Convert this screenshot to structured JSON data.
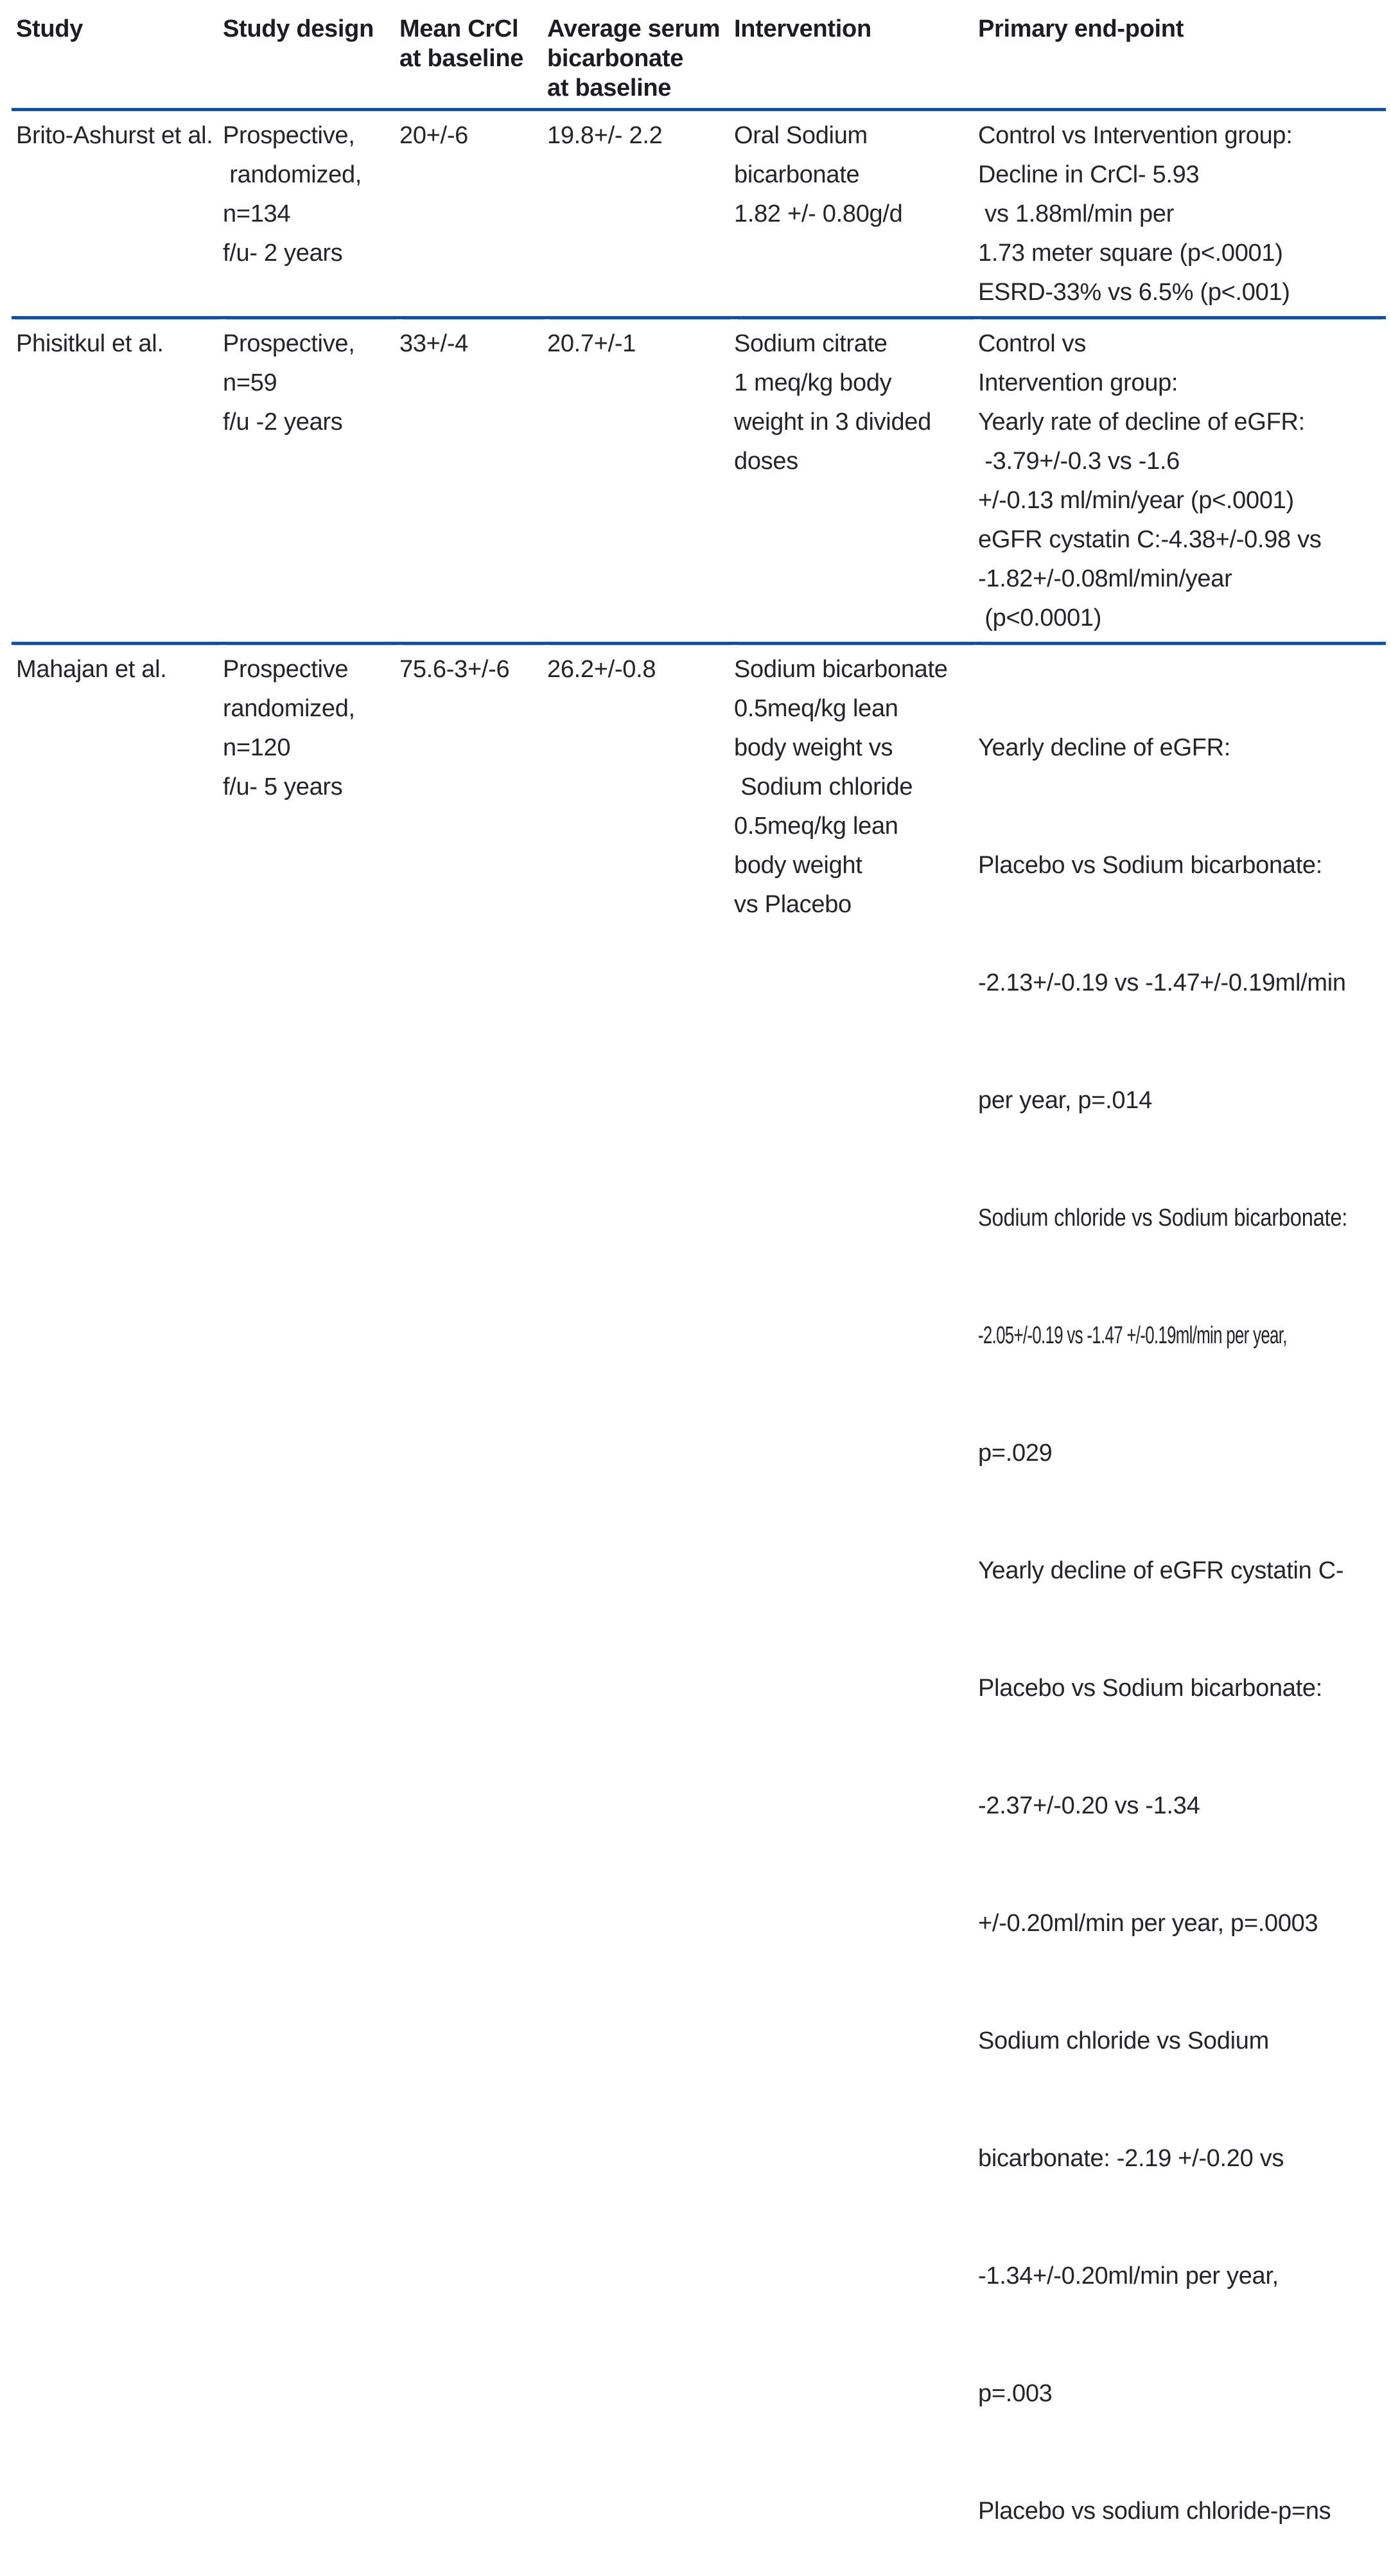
{
  "table": {
    "accent_color": "#15509f",
    "text_color": "#25242a",
    "headers": {
      "study": "Study",
      "design": "Study design",
      "crcl": [
        "Mean CrCl",
        "at baseline"
      ],
      "bicarb": [
        "Average serum",
        "bicarbonate",
        "at baseline"
      ],
      "intervention": "Intervention",
      "endpoint": "Primary end-point"
    }
  },
  "rows": [
    {
      "study": "Brito-Ashurst et al.",
      "design": [
        "Prospective,",
        " randomized,",
        "n=134",
        "f/u- 2 years"
      ],
      "crcl": "20+/-6",
      "bicarb": "19.8+/- 2.2",
      "intervention": [
        "Oral Sodium",
        "bicarbonate",
        "1.82 +/- 0.80g/d"
      ],
      "endpoint": [
        "Control vs Intervention group:",
        "Decline in CrCl- 5.93",
        " vs 1.88ml/min per",
        "1.73 meter square (p<.0001)",
        "ESRD-33% vs 6.5% (p<.001)"
      ]
    },
    {
      "study": "Phisitkul et al.",
      "design": [
        "Prospective,",
        "n=59",
        "f/u -2 years"
      ],
      "crcl": "33+/-4",
      "bicarb": "20.7+/-1",
      "intervention": [
        "Sodium citrate",
        "1 meq/kg body",
        "weight in 3 divided",
        "doses"
      ],
      "endpoint": [
        "Control vs",
        "Intervention group:",
        "Yearly rate of decline of eGFR:",
        " -3.79+/-0.3 vs -1.6",
        "+/-0.13 ml/min/year (p<.0001)",
        "eGFR cystatin C:-4.38+/-0.98 vs",
        "-1.82+/-0.08ml/min/year",
        " (p<0.0001)"
      ]
    },
    {
      "study": "Mahajan et al.",
      "design": [
        "Prospective",
        "randomized,",
        "n=120",
        "f/u- 5 years"
      ],
      "crcl": "75.6-3+/-6",
      "bicarb": "26.2+/-0.8",
      "intervention": [
        "Sodium bicarbonate",
        "0.5meq/kg lean",
        "body weight vs",
        " Sodium chloride",
        "0.5meq/kg lean",
        "body weight",
        "vs Placebo"
      ],
      "endpoint": [
        "Yearly decline of eGFR:",
        "Placebo vs Sodium bicarbonate:",
        "-2.13+/-0.19 vs -1.47+/-0.19ml/min",
        "per year, p=.014",
        "Sodium chloride vs Sodium bicarbonate:",
        "-2.05+/-0.19 vs -1.47 +/-0.19ml/min per year,",
        "p=.029",
        "Yearly decline of eGFR cystatin C-",
        "Placebo vs Sodium bicarbonate:",
        "-2.37+/-0.20 vs -1.34",
        "+/-0.20ml/min per year, p=.0003",
        "Sodium chloride vs Sodium",
        "bicarbonate: -2.19 +/-0.20 vs",
        "-1.34+/-0.20ml/min per year,",
        "p=.003",
        "Placebo vs sodium chloride-p=ns"
      ]
    }
  ]
}
